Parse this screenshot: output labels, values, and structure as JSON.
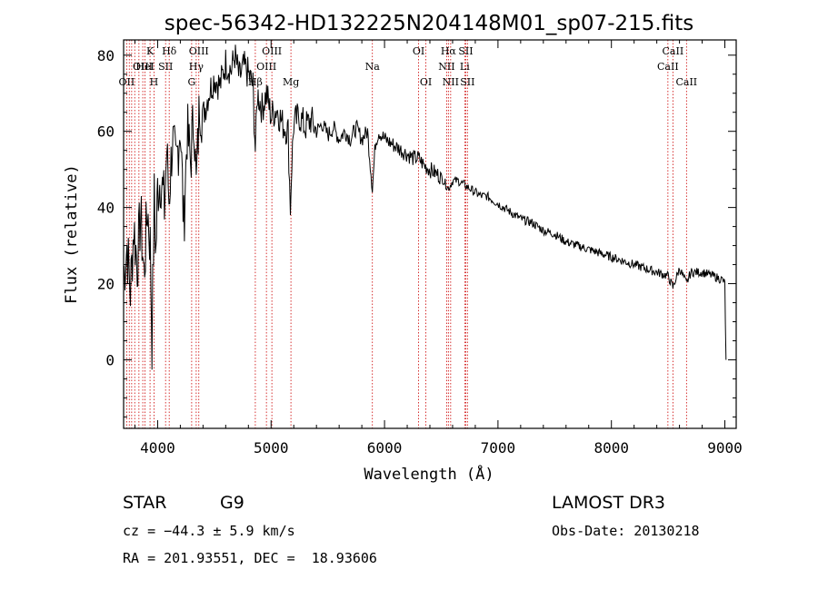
{
  "chart_data": {
    "type": "line",
    "title": "spec-56342-HD132225N204148M01_sp07-215.fits",
    "xlabel": "Wavelength (Å)",
    "ylabel": "Flux (relative)",
    "xlim": [
      3700,
      9100
    ],
    "ylim": [
      -18,
      84
    ],
    "xticks": [
      4000,
      5000,
      6000,
      7000,
      8000,
      9000
    ],
    "yticks": [
      0,
      20,
      40,
      60,
      80
    ],
    "series": [
      {
        "name": "flux",
        "x": [
          3700,
          3730,
          3760,
          3790,
          3820,
          3850,
          3880,
          3910,
          3935,
          3950,
          3970,
          3985,
          4000,
          4030,
          4060,
          4080,
          4100,
          4130,
          4160,
          4200,
          4230,
          4260,
          4290,
          4320,
          4340,
          4370,
          4400,
          4450,
          4500,
          4550,
          4600,
          4650,
          4680,
          4720,
          4760,
          4800,
          4840,
          4861,
          4880,
          4920,
          4960,
          5000,
          5050,
          5100,
          5150,
          5170,
          5183,
          5200,
          5250,
          5300,
          5350,
          5400,
          5450,
          5500,
          5550,
          5600,
          5650,
          5700,
          5750,
          5800,
          5850,
          5893,
          5920,
          5950,
          6000,
          6050,
          6100,
          6150,
          6200,
          6250,
          6300,
          6350,
          6400,
          6450,
          6500,
          6563,
          6600,
          6650,
          6700,
          6750,
          6800,
          6850,
          6900,
          6950,
          7000,
          7100,
          7200,
          7300,
          7400,
          7500,
          7600,
          7700,
          7800,
          7900,
          8000,
          8100,
          8200,
          8300,
          8400,
          8500,
          8542,
          8600,
          8662,
          8700,
          8800,
          8900,
          8980,
          9000,
          9010
        ],
        "values": [
          22,
          30,
          18,
          35,
          25,
          38,
          22,
          40,
          30,
          5,
          42,
          28,
          45,
          48,
          40,
          55,
          42,
          58,
          50,
          62,
          35,
          60,
          52,
          65,
          45,
          68,
          64,
          70,
          74,
          72,
          78,
          76,
          80,
          74,
          77,
          75,
          72,
          55,
          70,
          66,
          70,
          64,
          66,
          62,
          60,
          40,
          52,
          62,
          64,
          61,
          63,
          60,
          62,
          59,
          61,
          58,
          60,
          58,
          61,
          58,
          60,
          45,
          57,
          60,
          58,
          57,
          56,
          55,
          54,
          53,
          53,
          51,
          50,
          49,
          48,
          45,
          47,
          47,
          46,
          45,
          44,
          43,
          43,
          42,
          41,
          39,
          37,
          36,
          34,
          33,
          31,
          30,
          29,
          28,
          27,
          26,
          25,
          24,
          23,
          22,
          19,
          24,
          20,
          23,
          23,
          22,
          21,
          20,
          0
        ]
      }
    ],
    "lines": [
      {
        "wave": 3727,
        "label": "OII",
        "row": 2
      },
      {
        "wave": 3750,
        "label": "",
        "row": 0
      },
      {
        "wave": 3771,
        "label": "",
        "row": 0
      },
      {
        "wave": 3798,
        "label": "",
        "row": 0
      },
      {
        "wave": 3835,
        "label": "",
        "row": 0
      },
      {
        "wave": 3869,
        "label": "OIII",
        "row": 1
      },
      {
        "wave": 3889,
        "label": "HeI",
        "row": 1
      },
      {
        "wave": 3933,
        "label": "K",
        "row": 0
      },
      {
        "wave": 3968,
        "label": "H",
        "row": 2
      },
      {
        "wave": 4070,
        "label": "SII",
        "row": 1
      },
      {
        "wave": 4102,
        "label": "Hδ",
        "row": 0
      },
      {
        "wave": 4300,
        "label": "G",
        "row": 2
      },
      {
        "wave": 4340,
        "label": "Hγ",
        "row": 1
      },
      {
        "wave": 4363,
        "label": "OIII",
        "row": 0
      },
      {
        "wave": 4861,
        "label": "Hβ",
        "row": 2
      },
      {
        "wave": 4959,
        "label": "OIII",
        "row": 1
      },
      {
        "wave": 5007,
        "label": "OIII",
        "row": 0
      },
      {
        "wave": 5175,
        "label": "Mg",
        "row": 2
      },
      {
        "wave": 5893,
        "label": "Na",
        "row": 1
      },
      {
        "wave": 6300,
        "label": "OI",
        "row": 0
      },
      {
        "wave": 6364,
        "label": "OI",
        "row": 2
      },
      {
        "wave": 6548,
        "label": "NII",
        "row": 1
      },
      {
        "wave": 6563,
        "label": "Hα",
        "row": 0
      },
      {
        "wave": 6583,
        "label": "NII",
        "row": 2
      },
      {
        "wave": 6707,
        "label": "Li",
        "row": 1
      },
      {
        "wave": 6716,
        "label": "SII",
        "row": 0
      },
      {
        "wave": 6731,
        "label": "SII",
        "row": 2
      },
      {
        "wave": 8498,
        "label": "CaII",
        "row": 1
      },
      {
        "wave": 8542,
        "label": "CaII",
        "row": 0
      },
      {
        "wave": 8662,
        "label": "CaII",
        "row": 2
      }
    ],
    "annotations": {
      "class": "STAR",
      "subclass": "G9",
      "survey": "LAMOST DR3",
      "redshift": "cz = −44.3 ± 5.9 km/s",
      "obsdate": "Obs-Date: 20130218",
      "coords": "RA = 201.93551, DEC =  18.93606"
    }
  },
  "colors": {
    "spectrum": "#000000",
    "line_markers": "#cc0000",
    "axes": "#000000",
    "background": "#ffffff"
  }
}
